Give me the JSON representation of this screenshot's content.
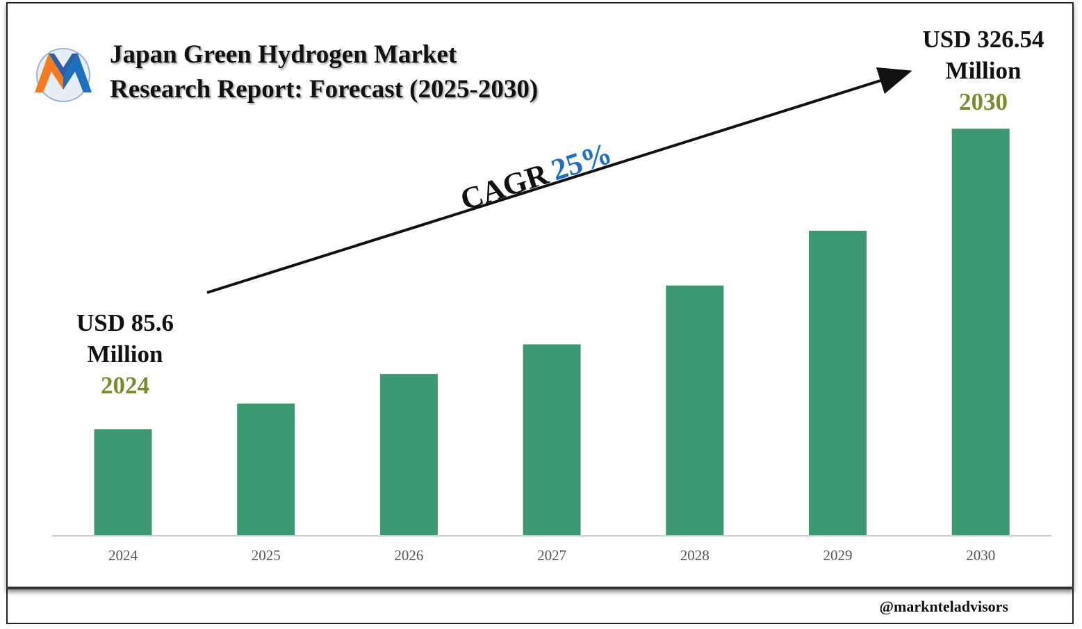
{
  "title_line1": "Japan Green Hydrogen Market",
  "title_line2": "Research Report: Forecast (2025-2030)",
  "logo_icon": "marknteladvisors-m-logo",
  "start_value": "USD 85.6",
  "start_unit": "Million",
  "start_year": "2024",
  "end_value": "USD 326.54",
  "end_unit": "Million",
  "end_year": "2030",
  "cagr_label": "CAGR",
  "cagr_value": "25%",
  "watermark": "@marknteladvisors",
  "colors": {
    "bar": "#3d9872",
    "year_accent": "#7a8c2e",
    "cagr_accent": "#1f6fbf"
  },
  "chart_data": {
    "type": "bar",
    "categories": [
      "2024",
      "2025",
      "2026",
      "2027",
      "2028",
      "2029",
      "2030"
    ],
    "values": [
      85.6,
      106.1,
      129.8,
      153.6,
      200.8,
      244.7,
      326.54
    ],
    "ylabel": "",
    "xlabel": "",
    "ylim": [
      0,
      340
    ],
    "grid": false,
    "legend": "none"
  }
}
